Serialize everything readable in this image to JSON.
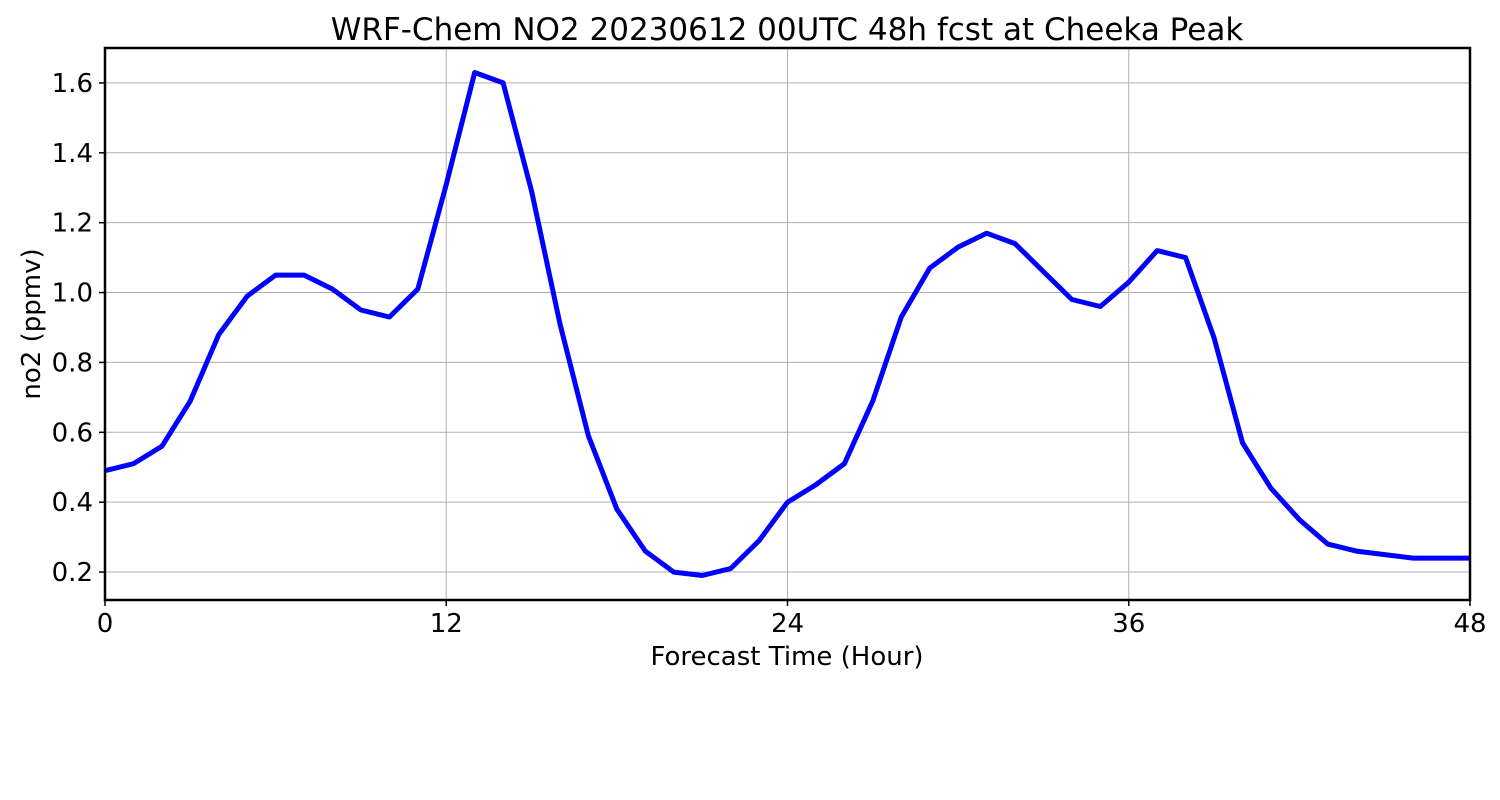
{
  "chart_data": {
    "type": "line",
    "title": "WRF-Chem NO2  20230612 00UTC 48h fcst at Cheeka Peak",
    "xlabel": "Forecast Time (Hour)",
    "ylabel": "no2  (ppmv)",
    "xlim": [
      0,
      48
    ],
    "ylim": [
      0.12,
      1.7
    ],
    "xticks": [
      0,
      12,
      24,
      36,
      48
    ],
    "xtick_labels": [
      "0",
      "12",
      "24",
      "36",
      "48"
    ],
    "yticks": [
      0.2,
      0.4,
      0.6,
      0.8,
      1.0,
      1.2,
      1.4,
      1.6
    ],
    "ytick_labels": [
      "0.2",
      "0.4",
      "0.6",
      "0.8",
      "1.0",
      "1.2",
      "1.4",
      "1.6"
    ],
    "grid": true,
    "line_color": "#0000ff",
    "series": [
      {
        "x": [
          0,
          1,
          2,
          3,
          4,
          5,
          6,
          7,
          8,
          9,
          10,
          11,
          12,
          13,
          14,
          15,
          16,
          17,
          18,
          19,
          20,
          21,
          22,
          23,
          24,
          25,
          26,
          27,
          28,
          29,
          30,
          31,
          32,
          33,
          34,
          35,
          36,
          37,
          38,
          39,
          40,
          41,
          42,
          43,
          44,
          45,
          46,
          47,
          48
        ],
        "values": [
          0.49,
          0.51,
          0.56,
          0.69,
          0.88,
          0.99,
          1.05,
          1.05,
          1.01,
          0.95,
          0.93,
          1.01,
          1.31,
          1.63,
          1.6,
          1.29,
          0.91,
          0.59,
          0.38,
          0.26,
          0.2,
          0.19,
          0.21,
          0.29,
          0.4,
          0.45,
          0.51,
          0.69,
          0.93,
          1.07,
          1.13,
          1.17,
          1.14,
          1.06,
          0.98,
          0.96,
          1.03,
          1.12,
          1.1,
          0.87,
          0.57,
          0.44,
          0.35,
          0.28,
          0.26,
          0.25,
          0.24,
          0.24,
          0.24
        ]
      }
    ]
  }
}
